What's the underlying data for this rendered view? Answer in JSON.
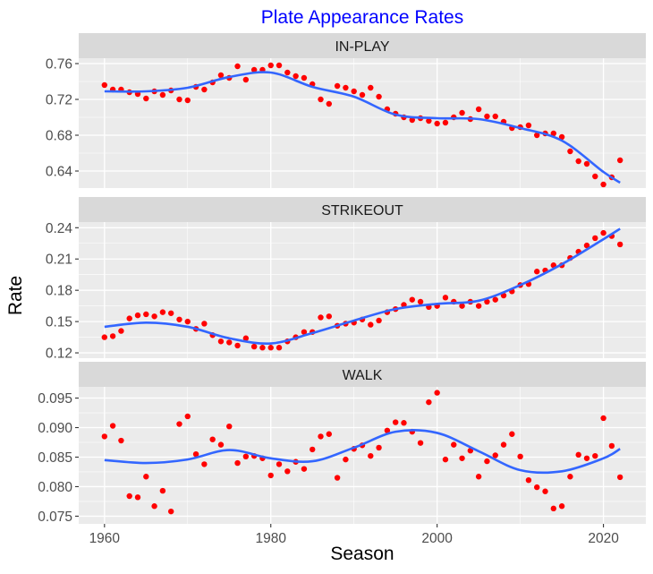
{
  "chart_data": {
    "type": "scatter",
    "title": "Plate Appearance Rates",
    "title_color": "#0000FF",
    "xlabel": "Season",
    "ylabel": "Rate",
    "xlim": [
      1956.9,
      2025.1
    ],
    "x_ticks": [
      1960,
      1980,
      2000,
      2020
    ],
    "grid": true,
    "point_color": "#FF0000",
    "smooth_color": "#3366FF",
    "years": [
      1960,
      1961,
      1962,
      1963,
      1964,
      1965,
      1966,
      1967,
      1968,
      1969,
      1970,
      1971,
      1972,
      1973,
      1974,
      1975,
      1976,
      1977,
      1978,
      1979,
      1980,
      1981,
      1982,
      1983,
      1984,
      1985,
      1986,
      1987,
      1988,
      1989,
      1990,
      1991,
      1992,
      1993,
      1994,
      1995,
      1996,
      1997,
      1998,
      1999,
      2000,
      2001,
      2002,
      2003,
      2004,
      2005,
      2006,
      2007,
      2008,
      2009,
      2010,
      2011,
      2012,
      2013,
      2014,
      2015,
      2016,
      2017,
      2018,
      2019,
      2020,
      2021,
      2022
    ],
    "smooth_years": [
      1960,
      1965,
      1970,
      1975,
      1980,
      1985,
      1990,
      1995,
      2000,
      2005,
      2010,
      2015,
      2020,
      2022
    ],
    "panels": [
      {
        "strip": "IN-PLAY",
        "ylim": [
          0.621,
          0.766
        ],
        "y_ticks": [
          "0.64",
          "0.68",
          "0.72",
          "0.76"
        ],
        "values": [
          0.736,
          0.731,
          0.731,
          0.728,
          0.726,
          0.721,
          0.729,
          0.725,
          0.73,
          0.72,
          0.719,
          0.734,
          0.731,
          0.739,
          0.747,
          0.744,
          0.757,
          0.742,
          0.753,
          0.753,
          0.758,
          0.758,
          0.75,
          0.746,
          0.744,
          0.737,
          0.72,
          0.715,
          0.735,
          0.733,
          0.729,
          0.725,
          0.733,
          0.723,
          0.709,
          0.704,
          0.7,
          0.697,
          0.699,
          0.696,
          0.693,
          0.694,
          0.7,
          0.705,
          0.698,
          0.709,
          0.701,
          0.701,
          0.695,
          0.688,
          0.689,
          0.691,
          0.68,
          0.682,
          0.682,
          0.678,
          0.662,
          0.651,
          0.648,
          0.634,
          0.625,
          0.633,
          0.652
        ],
        "smooth": [
          0.729,
          0.729,
          0.733,
          0.745,
          0.75,
          0.734,
          0.723,
          0.703,
          0.699,
          0.698,
          0.688,
          0.674,
          0.639,
          0.627
        ]
      },
      {
        "strip": "STRIKEOUT",
        "ylim": [
          0.1149,
          0.2454
        ],
        "y_ticks": [
          "0.12",
          "0.15",
          "0.18",
          "0.21",
          "0.24"
        ],
        "values": [
          0.135,
          0.136,
          0.141,
          0.153,
          0.156,
          0.157,
          0.155,
          0.159,
          0.158,
          0.152,
          0.15,
          0.143,
          0.148,
          0.137,
          0.131,
          0.13,
          0.127,
          0.134,
          0.126,
          0.125,
          0.125,
          0.125,
          0.131,
          0.135,
          0.14,
          0.14,
          0.154,
          0.155,
          0.146,
          0.148,
          0.149,
          0.152,
          0.147,
          0.151,
          0.159,
          0.162,
          0.166,
          0.171,
          0.169,
          0.164,
          0.165,
          0.173,
          0.169,
          0.165,
          0.169,
          0.165,
          0.169,
          0.171,
          0.175,
          0.179,
          0.185,
          0.186,
          0.198,
          0.199,
          0.204,
          0.204,
          0.211,
          0.217,
          0.223,
          0.23,
          0.235,
          0.232,
          0.224
        ],
        "smooth": [
          0.145,
          0.149,
          0.145,
          0.134,
          0.129,
          0.139,
          0.151,
          0.162,
          0.167,
          0.17,
          0.185,
          0.205,
          0.229,
          0.239
        ]
      },
      {
        "strip": "WALK",
        "ylim": [
          0.0737,
          0.0969
        ],
        "y_ticks": [
          "0.075",
          "0.080",
          "0.085",
          "0.090",
          "0.095"
        ],
        "values": [
          0.0885,
          0.0903,
          0.0878,
          0.0784,
          0.0782,
          0.0817,
          0.0767,
          0.0793,
          0.0758,
          0.0906,
          0.0919,
          0.0855,
          0.0838,
          0.088,
          0.0871,
          0.0902,
          0.084,
          0.0851,
          0.0852,
          0.0848,
          0.0819,
          0.0838,
          0.0826,
          0.0842,
          0.083,
          0.0863,
          0.0885,
          0.0889,
          0.0815,
          0.0846,
          0.0864,
          0.087,
          0.0852,
          0.0866,
          0.0895,
          0.0909,
          0.0908,
          0.0893,
          0.0874,
          0.0943,
          0.0959,
          0.0846,
          0.0871,
          0.0848,
          0.0861,
          0.0817,
          0.0843,
          0.0853,
          0.0871,
          0.0889,
          0.0851,
          0.0811,
          0.0799,
          0.0792,
          0.0763,
          0.0767,
          0.0817,
          0.0854,
          0.0848,
          0.0852,
          0.0916,
          0.0869,
          0.0816
        ],
        "smooth": [
          0.0845,
          0.084,
          0.0846,
          0.0862,
          0.0848,
          0.0843,
          0.0866,
          0.0893,
          0.0891,
          0.086,
          0.0828,
          0.0826,
          0.0848,
          0.0864
        ]
      }
    ]
  }
}
